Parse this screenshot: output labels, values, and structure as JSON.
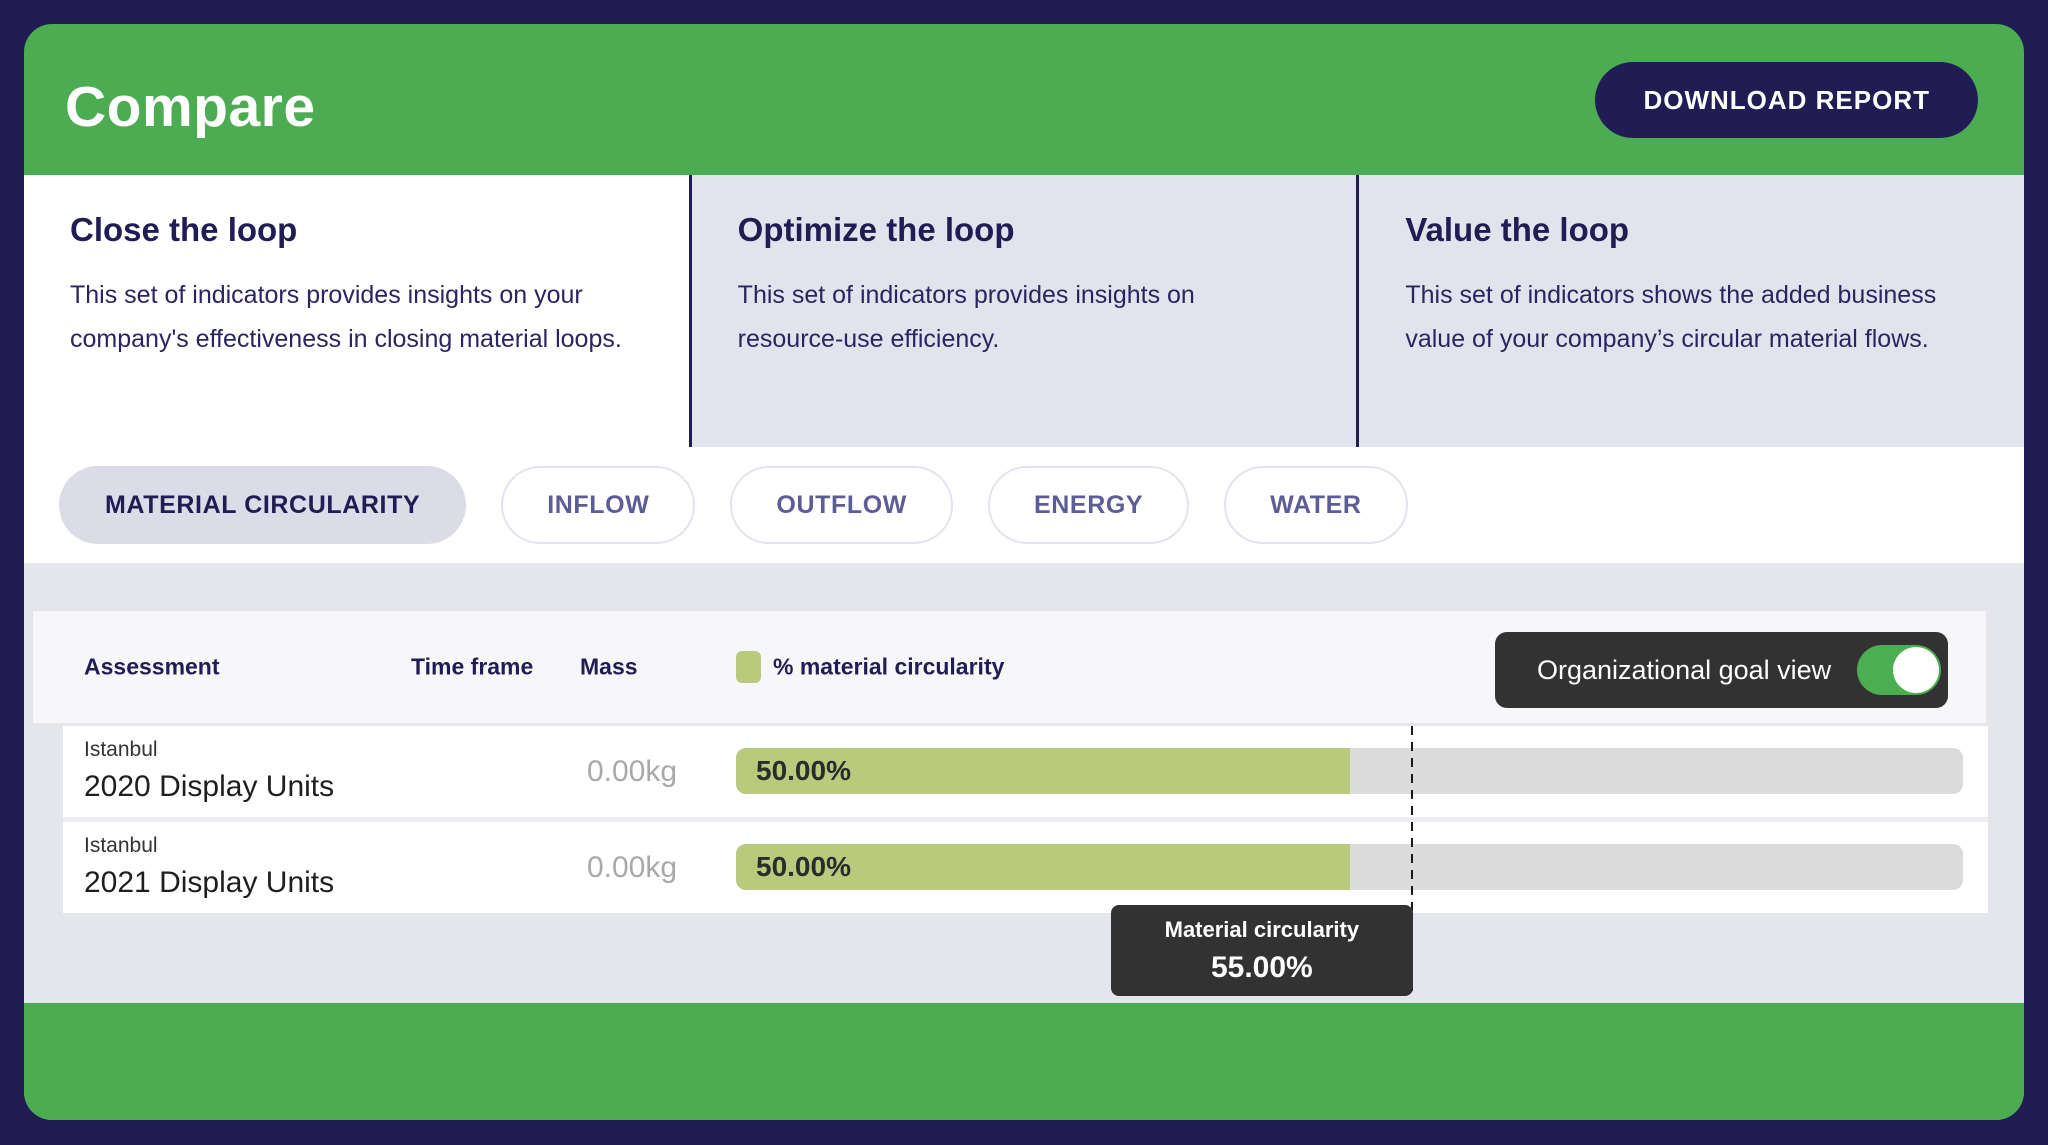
{
  "header": {
    "title": "Compare",
    "download_button": "DOWNLOAD REPORT"
  },
  "loop_cards": [
    {
      "title": "Close the loop",
      "description": "This set of indicators provides insights on your company's effectiveness in closing material loops.",
      "active": true
    },
    {
      "title": "Optimize the loop",
      "description": "This set of indicators provides insights on resource-use efficiency.",
      "active": false
    },
    {
      "title": "Value the loop",
      "description": "This set of indicators shows the added business value of your company’s circular material flows.",
      "active": false
    }
  ],
  "tabs": [
    {
      "label": "MATERIAL CIRCULARITY",
      "active": true
    },
    {
      "label": "INFLOW",
      "active": false
    },
    {
      "label": "OUTFLOW",
      "active": false
    },
    {
      "label": "ENERGY",
      "active": false
    },
    {
      "label": "WATER",
      "active": false
    }
  ],
  "table": {
    "headers": {
      "assessment": "Assessment",
      "time_frame": "Time frame",
      "mass": "Mass",
      "circularity": "% material circularity"
    },
    "goal_toggle": {
      "label": "Organizational goal view",
      "state": "on"
    },
    "rows": [
      {
        "location": "Istanbul",
        "name": "2020 Display Units",
        "time_frame": "",
        "mass": "0.00kg",
        "circularity_label": "50.00%",
        "circularity_percent": 50
      },
      {
        "location": "Istanbul",
        "name": "2021 Display Units",
        "time_frame": "",
        "mass": "0.00kg",
        "circularity_label": "50.00%",
        "circularity_percent": 50
      }
    ],
    "goal_marker": {
      "title": "Material circularity",
      "value": "55.00%",
      "percent": 55
    }
  },
  "colors": {
    "navy": "#221C55",
    "green": "#4BAC51",
    "panel_gray": "#E5E5EC",
    "column_gray": "#E2E3ED",
    "header_strip": "#F7F7FA",
    "bar_green": "#B9CA7D",
    "bar_track": "#DBDBDB",
    "charcoal": "#323232",
    "switch_green": "#4BAE50",
    "tab_text": "#5C5C97",
    "active_tab_bg": "#DBDCE7"
  }
}
